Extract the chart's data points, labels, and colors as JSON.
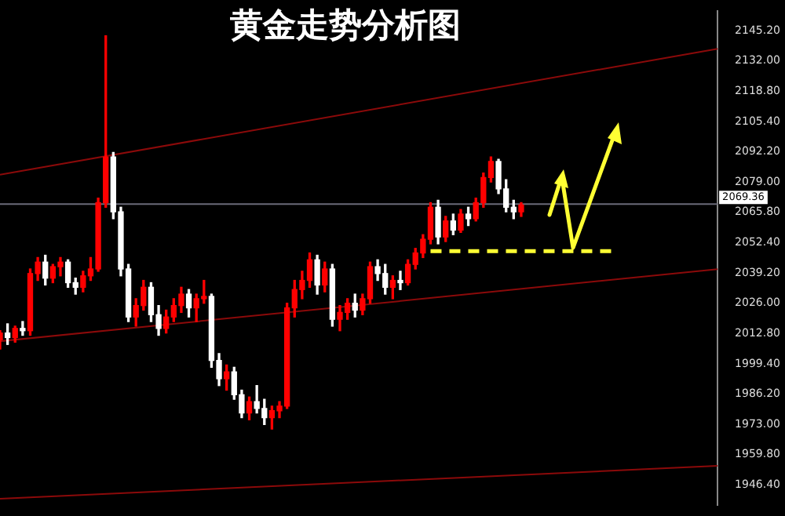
{
  "chart_data": {
    "type": "candlestick",
    "title": "黄金走势分析图",
    "categories": [
      null,
      null,
      null,
      null,
      null,
      null,
      null,
      null,
      null,
      null,
      null,
      null,
      null,
      null,
      null,
      null,
      null,
      null,
      null,
      null,
      null,
      null,
      null,
      null,
      null,
      null,
      null,
      null,
      null,
      null,
      null,
      null,
      null,
      null,
      null,
      null,
      null,
      null,
      null,
      null,
      null,
      null,
      null,
      null,
      null,
      null,
      null,
      null,
      null,
      null,
      null,
      null,
      null,
      null,
      null,
      null,
      null,
      null,
      null,
      null,
      null,
      null,
      null,
      null,
      null,
      null,
      null,
      null,
      null,
      null,
      null,
      null,
      null,
      null,
      null,
      null,
      null,
      null,
      null,
      null,
      null,
      null,
      null,
      null,
      null,
      null,
      null,
      null,
      null,
      null,
      null,
      null,
      null,
      null,
      null,
      null
    ],
    "ohlc": [
      [
        2010,
        2014,
        2006,
        2013
      ],
      [
        2013,
        2017,
        2008,
        2011
      ],
      [
        2011,
        2016,
        2009,
        2015
      ],
      [
        2015,
        2018,
        2012,
        2014
      ],
      [
        2014,
        2041,
        2012,
        2039
      ],
      [
        2039,
        2046,
        2036,
        2044
      ],
      [
        2044,
        2047,
        2034,
        2037
      ],
      [
        2037,
        2043,
        2035,
        2042
      ],
      [
        2042,
        2046,
        2038,
        2044
      ],
      [
        2044,
        2045,
        2033,
        2035
      ],
      [
        2035,
        2037,
        2030,
        2033
      ],
      [
        2033,
        2040,
        2031,
        2038
      ],
      [
        2038,
        2046,
        2036,
        2041
      ],
      [
        2041,
        2072,
        2040,
        2070
      ],
      [
        2070,
        2143,
        2068,
        2090
      ],
      [
        2090,
        2092,
        2063,
        2066
      ],
      [
        2066,
        2068,
        2038,
        2041
      ],
      [
        2041,
        2043,
        2018,
        2020
      ],
      [
        2020,
        2028,
        2016,
        2025
      ],
      [
        2025,
        2036,
        2023,
        2033
      ],
      [
        2033,
        2035,
        2018,
        2021
      ],
      [
        2021,
        2025,
        2012,
        2015
      ],
      [
        2015,
        2023,
        2013,
        2020
      ],
      [
        2020,
        2028,
        2018,
        2025
      ],
      [
        2025,
        2033,
        2022,
        2030
      ],
      [
        2030,
        2032,
        2020,
        2024
      ],
      [
        2024,
        2030,
        2018,
        2028
      ],
      [
        2028,
        2036,
        2026,
        2029
      ],
      [
        2029,
        2030,
        1998,
        2001
      ],
      [
        2001,
        2004,
        1990,
        1993
      ],
      [
        1993,
        1999,
        1988,
        1996
      ],
      [
        1996,
        1998,
        1984,
        1986
      ],
      [
        1986,
        1988,
        1976,
        1978
      ],
      [
        1978,
        1985,
        1975,
        1983
      ],
      [
        1983,
        1990,
        1978,
        1980
      ],
      [
        1980,
        1984,
        1973,
        1976
      ],
      [
        1976,
        1981,
        1971,
        1979
      ],
      [
        1979,
        1983,
        1976,
        1981
      ],
      [
        1981,
        2026,
        1980,
        2024
      ],
      [
        2024,
        2036,
        2020,
        2032
      ],
      [
        2032,
        2040,
        2028,
        2036
      ],
      [
        2036,
        2048,
        2033,
        2045
      ],
      [
        2045,
        2047,
        2030,
        2034
      ],
      [
        2034,
        2044,
        2031,
        2041
      ],
      [
        2041,
        2043,
        2016,
        2019
      ],
      [
        2019,
        2025,
        2014,
        2022
      ],
      [
        2022,
        2028,
        2019,
        2026
      ],
      [
        2026,
        2030,
        2020,
        2023
      ],
      [
        2023,
        2030,
        2021,
        2028
      ],
      [
        2028,
        2044,
        2026,
        2042
      ],
      [
        2042,
        2045,
        2036,
        2039
      ],
      [
        2039,
        2043,
        2030,
        2033
      ],
      [
        2033,
        2038,
        2028,
        2036
      ],
      [
        2036,
        2040,
        2032,
        2035
      ],
      [
        2035,
        2045,
        2034,
        2043
      ],
      [
        2043,
        2050,
        2041,
        2048
      ],
      [
        2048,
        2056,
        2046,
        2054
      ],
      [
        2054,
        2070,
        2052,
        2068
      ],
      [
        2068,
        2071,
        2052,
        2055
      ],
      [
        2055,
        2064,
        2053,
        2062
      ],
      [
        2062,
        2065,
        2056,
        2058
      ],
      [
        2058,
        2067,
        2057,
        2065
      ],
      [
        2065,
        2068,
        2060,
        2063
      ],
      [
        2063,
        2072,
        2062,
        2070
      ],
      [
        2070,
        2083,
        2068,
        2081
      ],
      [
        2081,
        2090,
        2079,
        2088
      ],
      [
        2088,
        2089,
        2074,
        2076
      ],
      [
        2076,
        2080,
        2066,
        2068
      ],
      [
        2068,
        2071,
        2063,
        2066
      ],
      [
        2066,
        2070,
        2064,
        2069
      ],
      null,
      null,
      null,
      null,
      null,
      null,
      null,
      null,
      null,
      null,
      null,
      null,
      null,
      null,
      null,
      null,
      null,
      null,
      null,
      null,
      null,
      null,
      null,
      null,
      null,
      null
    ],
    "colors": [
      "#ff0000",
      "#ffffff",
      "#ff0000",
      "#ffffff",
      "#ff0000",
      "#ff0000",
      "#ffffff",
      "#ff0000",
      "#ff0000",
      "#ffffff",
      "#ffffff",
      "#ff0000",
      "#ff0000",
      "#ff0000",
      "#ff0000",
      "#ffffff",
      "#ffffff",
      "#ffffff",
      "#ff0000",
      "#ff0000",
      "#ffffff",
      "#ffffff",
      "#ff0000",
      "#ff0000",
      "#ff0000",
      "#ffffff",
      "#ff0000",
      "#ff0000",
      "#ffffff",
      "#ffffff",
      "#ff0000",
      "#ffffff",
      "#ffffff",
      "#ff0000",
      "#ffffff",
      "#ffffff",
      "#ff0000",
      "#ff0000",
      "#ff0000",
      "#ff0000",
      "#ff0000",
      "#ff0000",
      "#ffffff",
      "#ff0000",
      "#ffffff",
      "#ff0000",
      "#ff0000",
      "#ffffff",
      "#ff0000",
      "#ff0000",
      "#ffffff",
      "#ffffff",
      "#ff0000",
      "#ffffff",
      "#ff0000",
      "#ff0000",
      "#ff0000",
      "#ff0000",
      "#ffffff",
      "#ff0000",
      "#ffffff",
      "#ff0000",
      "#ffffff",
      "#ff0000",
      "#ff0000",
      "#ff0000",
      "#ffffff",
      "#ffffff",
      "#ffffff",
      "#ff0000",
      null,
      null,
      null,
      null,
      null,
      null,
      null,
      null,
      null,
      null,
      null,
      null,
      null,
      null,
      null,
      null,
      null,
      null,
      null,
      null,
      null,
      null,
      null,
      null,
      null,
      null
    ],
    "series": [
      {
        "type": "line",
        "color": "#8b0a0a",
        "line_style": "solid",
        "values": [
          2082.2,
          null,
          null,
          null,
          null,
          null,
          null,
          null,
          null,
          null,
          null,
          null,
          null,
          null,
          null,
          null,
          null,
          null,
          null,
          null,
          null,
          null,
          null,
          null,
          null,
          null,
          null,
          null,
          null,
          null,
          null,
          null,
          null,
          null,
          null,
          null,
          null,
          null,
          null,
          null,
          null,
          null,
          null,
          null,
          null,
          null,
          null,
          null,
          null,
          null,
          null,
          null,
          null,
          null,
          null,
          null,
          null,
          null,
          null,
          null,
          null,
          null,
          null,
          null,
          null,
          null,
          null,
          null,
          null,
          null,
          null,
          null,
          null,
          null,
          null,
          null,
          null,
          null,
          null,
          null,
          null,
          null,
          null,
          null,
          null,
          null,
          null,
          null,
          null,
          null,
          null,
          null,
          null,
          null,
          null,
          2137.3
        ]
      },
      {
        "type": "line",
        "color": "#8b0a0a",
        "line_style": "solid",
        "values": [
          2009.4,
          null,
          null,
          null,
          null,
          null,
          null,
          null,
          null,
          null,
          null,
          null,
          null,
          null,
          null,
          null,
          null,
          null,
          null,
          null,
          null,
          null,
          null,
          null,
          null,
          null,
          null,
          null,
          null,
          null,
          null,
          null,
          null,
          null,
          null,
          null,
          null,
          null,
          null,
          null,
          null,
          null,
          null,
          null,
          null,
          null,
          null,
          null,
          null,
          null,
          null,
          null,
          null,
          null,
          null,
          null,
          null,
          null,
          null,
          null,
          null,
          null,
          null,
          null,
          null,
          null,
          null,
          null,
          null,
          null,
          null,
          null,
          null,
          null,
          null,
          null,
          null,
          null,
          null,
          null,
          null,
          null,
          null,
          null,
          null,
          null,
          null,
          null,
          null,
          null,
          null,
          null,
          null,
          null,
          null,
          2040.9
        ]
      },
      {
        "type": "line",
        "color": "#8b0a0a",
        "line_style": "solid",
        "values": [
          1940.5,
          null,
          null,
          null,
          null,
          null,
          null,
          null,
          null,
          null,
          null,
          null,
          null,
          null,
          null,
          null,
          null,
          null,
          null,
          null,
          null,
          null,
          null,
          null,
          null,
          null,
          null,
          null,
          null,
          null,
          null,
          null,
          null,
          null,
          null,
          null,
          null,
          null,
          null,
          null,
          null,
          null,
          null,
          null,
          null,
          null,
          null,
          null,
          null,
          null,
          null,
          null,
          null,
          null,
          null,
          null,
          null,
          null,
          null,
          null,
          null,
          null,
          null,
          null,
          null,
          null,
          null,
          null,
          null,
          null,
          null,
          null,
          null,
          null,
          null,
          null,
          null,
          null,
          null,
          null,
          null,
          null,
          null,
          null,
          null,
          null,
          null,
          null,
          null,
          null,
          null,
          null,
          null,
          null,
          null,
          1954.9
        ]
      },
      {
        "type": "line",
        "color": "#ffff33",
        "line_style": "dashed",
        "values": [
          null,
          null,
          null,
          null,
          null,
          null,
          null,
          null,
          null,
          null,
          null,
          null,
          null,
          null,
          null,
          null,
          null,
          null,
          null,
          null,
          null,
          null,
          null,
          null,
          null,
          null,
          null,
          null,
          null,
          null,
          null,
          null,
          null,
          null,
          null,
          null,
          null,
          null,
          null,
          null,
          null,
          null,
          null,
          null,
          null,
          null,
          null,
          null,
          null,
          null,
          null,
          null,
          null,
          null,
          null,
          null,
          null,
          2048.8,
          null,
          null,
          null,
          null,
          null,
          null,
          null,
          null,
          null,
          null,
          null,
          null,
          null,
          null,
          null,
          null,
          null,
          null,
          null,
          null,
          null,
          null,
          null,
          2048.8,
          null,
          null,
          null,
          null,
          null,
          null,
          null,
          null,
          null,
          null,
          null,
          null,
          null,
          null
        ]
      }
    ],
    "ref_lines": [
      {
        "axis": "y",
        "value": 2069.36,
        "label": "2069.36",
        "color": "#6a6a78"
      }
    ],
    "ylim": [
      1937.9,
      2153.7
    ],
    "yticks": [
      {
        "value": 2145.2,
        "label": "2145.20"
      },
      {
        "value": 2132.0,
        "label": "2132.00"
      },
      {
        "value": 2118.8,
        "label": "2118.80"
      },
      {
        "value": 2105.4,
        "label": "2105.40"
      },
      {
        "value": 2092.2,
        "label": "2092.20"
      },
      {
        "value": 2079.0,
        "label": "2079.00"
      },
      {
        "value": 2065.8,
        "label": "2065.80"
      },
      {
        "value": 2052.4,
        "label": "2052.40"
      },
      {
        "value": 2039.2,
        "label": "2039.20"
      },
      {
        "value": 2026.0,
        "label": "2026.00"
      },
      {
        "value": 2012.8,
        "label": "2012.80"
      },
      {
        "value": 1999.4,
        "label": "1999.40"
      },
      {
        "value": 1986.2,
        "label": "1986.20"
      },
      {
        "value": 1973.0,
        "label": "1973.00"
      },
      {
        "value": 1959.8,
        "label": "1959.80"
      },
      {
        "value": 1946.4,
        "label": "1946.40"
      }
    ],
    "legend": false,
    "marker": "none",
    "tick_labels": "y"
  }
}
